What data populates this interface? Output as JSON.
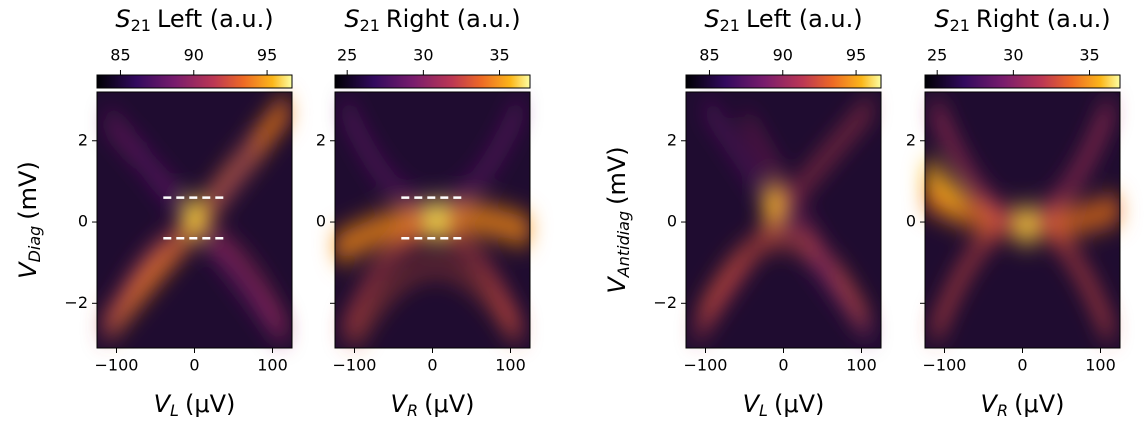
{
  "chart_data": [
    {
      "type": "heatmap",
      "colormap": "inferno",
      "colorbar_label": {
        "main": "S",
        "sub": "21",
        "text": "Left (a.u.)"
      },
      "clim": [
        83.4,
        96.7
      ],
      "cticks": [
        85,
        90,
        95
      ],
      "xlabel": {
        "main": "V",
        "sub": "L",
        "unit": "(μV)"
      },
      "ylabel": {
        "main": "V",
        "sub": "Diag",
        "unit": "(mV)"
      },
      "xlim": [
        -125,
        125
      ],
      "xticks": [
        {
          "value": -100,
          "label": "−100"
        },
        0,
        100
      ],
      "ylim": [
        -3.1,
        3.2
      ],
      "yticks": [
        {
          "value": -2,
          "label": "−2"
        },
        0,
        2
      ],
      "markers": [
        {
          "y": 0.6,
          "x": [
            -40,
            40
          ]
        },
        {
          "y": -0.4,
          "x": [
            -40,
            40
          ]
        }
      ]
    },
    {
      "type": "heatmap",
      "colormap": "inferno",
      "colorbar_label": {
        "main": "S",
        "sub": "21",
        "text": "Right (a.u.)"
      },
      "clim": [
        24.2,
        37.0
      ],
      "cticks": [
        25,
        30,
        35
      ],
      "xlabel": {
        "main": "V",
        "sub": "R",
        "unit": "(μV)"
      },
      "xlim": [
        -125,
        125
      ],
      "xticks": [
        {
          "value": -100,
          "label": "−100"
        },
        0,
        100
      ],
      "ylim": [
        -3.1,
        3.2
      ],
      "yticks": [
        {
          "value": -2,
          "label": ""
        },
        0,
        2
      ],
      "markers": [
        {
          "y": 0.6,
          "x": [
            -40,
            40
          ]
        },
        {
          "y": -0.4,
          "x": [
            -40,
            40
          ]
        }
      ]
    },
    {
      "type": "heatmap",
      "colormap": "inferno",
      "colorbar_label": {
        "main": "S",
        "sub": "21",
        "text": "Left (a.u.)"
      },
      "clim": [
        83.4,
        96.7
      ],
      "cticks": [
        85,
        90,
        95
      ],
      "xlabel": {
        "main": "V",
        "sub": "L",
        "unit": "(μV)"
      },
      "ylabel": {
        "main": "V",
        "sub": "Antidiag",
        "unit": "(mV)"
      },
      "xlim": [
        -125,
        125
      ],
      "xticks": [
        {
          "value": -100,
          "label": "−100"
        },
        0,
        100
      ],
      "ylim": [
        -3.1,
        3.2
      ],
      "yticks": [
        {
          "value": -2,
          "label": "−2"
        },
        0,
        2
      ]
    },
    {
      "type": "heatmap",
      "colormap": "inferno",
      "colorbar_label": {
        "main": "S",
        "sub": "21",
        "text": "Right (a.u.)"
      },
      "clim": [
        24.2,
        37.0
      ],
      "cticks": [
        25,
        30,
        35
      ],
      "xlabel": {
        "main": "V",
        "sub": "R",
        "unit": "(μV)"
      },
      "xlim": [
        -125,
        125
      ],
      "xticks": [
        {
          "value": -100,
          "label": "−100"
        },
        0,
        100
      ],
      "ylim": [
        -3.1,
        3.2
      ],
      "yticks": [
        {
          "value": -2,
          "label": ""
        },
        0,
        2
      ]
    }
  ]
}
